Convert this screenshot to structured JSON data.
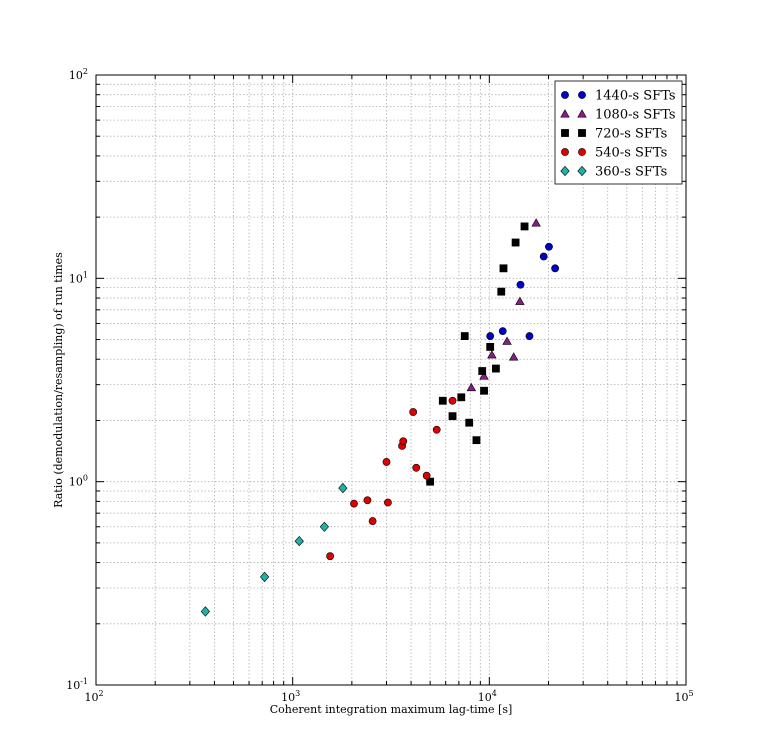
{
  "chart_data": {
    "type": "scatter",
    "title": "",
    "xlabel": "Coherent integration maximum lag-time [s]",
    "ylabel": "Ratio (demodulation/resampling) of run times",
    "xscale": "log",
    "yscale": "log",
    "xlim": [
      100,
      100000
    ],
    "ylim": [
      0.1,
      100
    ],
    "x_ticks": [
      {
        "base": "10",
        "exp": "2",
        "value": 100
      },
      {
        "base": "10",
        "exp": "3",
        "value": 1000
      },
      {
        "base": "10",
        "exp": "4",
        "value": 10000
      },
      {
        "base": "10",
        "exp": "5",
        "value": 100000
      }
    ],
    "y_ticks": [
      {
        "base": "10",
        "exp": "-1",
        "value": 0.1
      },
      {
        "base": "10",
        "exp": "0",
        "value": 1
      },
      {
        "base": "10",
        "exp": "1",
        "value": 10
      },
      {
        "base": "10",
        "exp": "2",
        "value": 100
      }
    ],
    "grid": true,
    "legend_position": "top-right",
    "series": [
      {
        "name": "1440-s SFTs",
        "marker": "circle",
        "color": "#0000cc",
        "points": [
          [
            10100,
            5.2
          ],
          [
            11700,
            5.5
          ],
          [
            14400,
            9.3
          ],
          [
            16000,
            5.2
          ],
          [
            18900,
            12.8
          ],
          [
            20100,
            14.3
          ],
          [
            21600,
            11.2
          ]
        ]
      },
      {
        "name": "1080-s SFTs",
        "marker": "triangle",
        "color": "#8b1a8b",
        "points": [
          [
            8100,
            2.9
          ],
          [
            9400,
            3.3
          ],
          [
            10300,
            4.2
          ],
          [
            12300,
            4.9
          ],
          [
            13300,
            4.1
          ],
          [
            14300,
            7.7
          ],
          [
            17300,
            18.7
          ]
        ]
      },
      {
        "name": "720-s SFTs",
        "marker": "square",
        "color": "#000000",
        "points": [
          [
            5000,
            1.0
          ],
          [
            5800,
            2.5
          ],
          [
            6500,
            2.1
          ],
          [
            7200,
            2.6
          ],
          [
            7500,
            5.2
          ],
          [
            7900,
            1.95
          ],
          [
            8600,
            1.6
          ],
          [
            9200,
            3.5
          ],
          [
            9400,
            2.8
          ],
          [
            10100,
            4.6
          ],
          [
            10800,
            3.6
          ],
          [
            11500,
            8.6
          ],
          [
            11800,
            11.2
          ],
          [
            13600,
            15.0
          ],
          [
            15100,
            18.0
          ]
        ]
      },
      {
        "name": "540-s SFTs",
        "marker": "circle",
        "color": "#dd0000",
        "points": [
          [
            1550,
            0.43
          ],
          [
            2050,
            0.78
          ],
          [
            2400,
            0.81
          ],
          [
            2550,
            0.64
          ],
          [
            3000,
            1.25
          ],
          [
            3050,
            0.79
          ],
          [
            3600,
            1.5
          ],
          [
            3650,
            1.58
          ],
          [
            4100,
            2.2
          ],
          [
            4250,
            1.17
          ],
          [
            4800,
            1.07
          ],
          [
            5400,
            1.8
          ],
          [
            6500,
            2.5
          ]
        ]
      },
      {
        "name": "360-s SFTs",
        "marker": "diamond",
        "color": "#20b2aa",
        "points": [
          [
            360,
            0.23
          ],
          [
            720,
            0.34
          ],
          [
            1080,
            0.51
          ],
          [
            1450,
            0.6
          ],
          [
            1800,
            0.93
          ]
        ]
      }
    ]
  }
}
